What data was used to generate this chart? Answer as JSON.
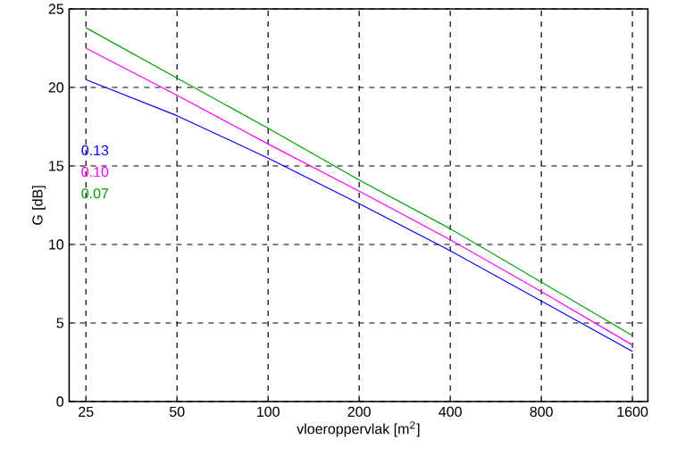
{
  "chart_data": {
    "type": "line",
    "xlabel": "vloeroppervlak  [m$^{2}$]",
    "ylabel": "G  [dB]",
    "x": [
      25,
      50,
      100,
      200,
      400,
      800,
      1600
    ],
    "series": [
      {
        "name": "0.13",
        "color": "#0000ff",
        "values": [
          20.5,
          18.2,
          15.5,
          12.6,
          9.6,
          6.4,
          3.2
        ]
      },
      {
        "name": "0.10",
        "color": "#ff00ff",
        "values": [
          22.5,
          19.5,
          16.4,
          13.4,
          10.3,
          7.0,
          3.6
        ]
      },
      {
        "name": "0.07",
        "color": "#00a000",
        "values": [
          23.8,
          20.6,
          17.4,
          14.1,
          11.0,
          7.6,
          4.2
        ]
      }
    ],
    "log": "x",
    "xlim": [
      22,
      1800
    ],
    "ylim": [
      0,
      25
    ],
    "xticks": [
      25,
      50,
      100,
      200,
      400,
      800,
      1600
    ],
    "yticks": [
      0,
      5,
      10,
      15,
      20,
      25
    ],
    "grid": true
  }
}
